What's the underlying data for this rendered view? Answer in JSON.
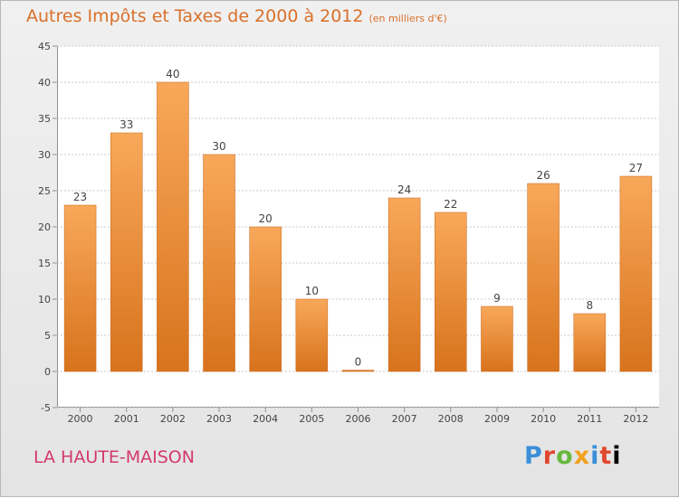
{
  "header": {
    "title": "Autres Impôts et Taxes de 2000 à 2012",
    "unit": "(en milliers d'€)"
  },
  "footer": {
    "commune": "LA HAUTE-MAISON",
    "logo": [
      "P",
      "r",
      "o",
      "x",
      "i",
      "t",
      "i"
    ]
  },
  "colors": {
    "bar_top": "#f8a85a",
    "bar_bottom": "#d8731c",
    "title": "#d9702a",
    "commune": "#d33a6a"
  },
  "chart_data": {
    "type": "bar",
    "title": "Autres Impôts et Taxes de 2000 à 2012",
    "subtitle": "(en milliers d'€)",
    "categories": [
      "2000",
      "2001",
      "2002",
      "2003",
      "2004",
      "2005",
      "2006",
      "2007",
      "2008",
      "2009",
      "2010",
      "2011",
      "2012"
    ],
    "values": [
      23,
      33,
      40,
      30,
      20,
      10,
      0,
      24,
      22,
      9,
      26,
      8,
      27
    ],
    "data_labels": [
      "23",
      "33",
      "40",
      "30",
      "20",
      "10",
      "0",
      "24",
      "22",
      "9",
      "26",
      "8",
      "27"
    ],
    "ylim": [
      -5,
      45
    ],
    "yticks": [
      -5,
      0,
      5,
      10,
      15,
      20,
      25,
      30,
      35,
      40,
      45
    ],
    "ytick_labels": [
      "-5",
      "0",
      "5",
      "10",
      "15",
      "20",
      "25",
      "30",
      "35",
      "40",
      "45"
    ],
    "grid": true,
    "xlabel": "",
    "ylabel": ""
  }
}
